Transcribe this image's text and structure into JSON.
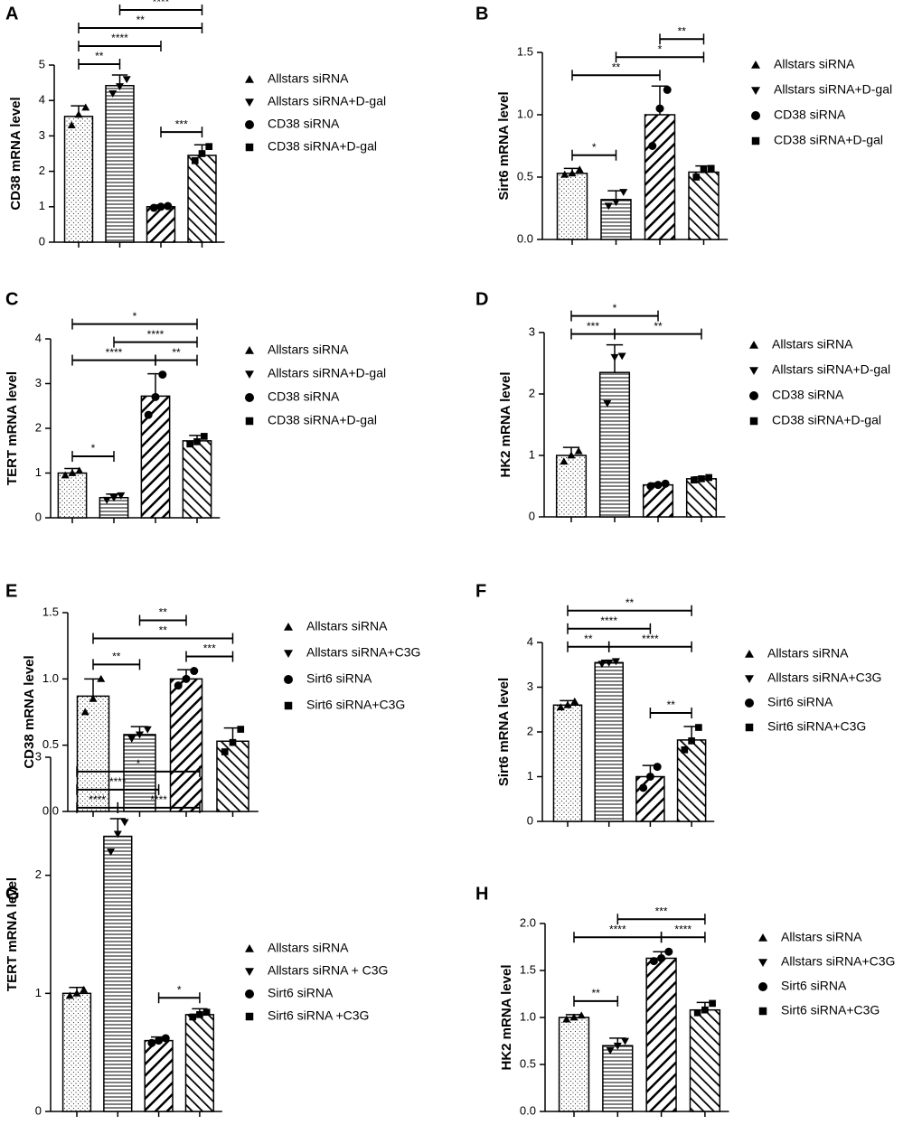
{
  "chart_data": [
    {
      "type": "bar",
      "panel": "A",
      "ylabel": "CD38 mRNA level",
      "categories": [
        "Allstars siRNA",
        "Allstars siRNA+D-gal",
        "CD38 siRNA",
        "CD38 siRNA+D-gal"
      ],
      "values": [
        3.55,
        4.42,
        1.0,
        2.45
      ],
      "errors": [
        0.3,
        0.3,
        0.05,
        0.3
      ],
      "points": [
        [
          3.3,
          3.6,
          3.8
        ],
        [
          4.2,
          4.4,
          4.6
        ],
        [
          0.97,
          1.0,
          1.02
        ],
        [
          2.3,
          2.5,
          2.7
        ]
      ],
      "ylim": [
        0,
        5
      ],
      "yticks": [
        0,
        1,
        2,
        3,
        4,
        5
      ],
      "brackets": [
        {
          "from": 0,
          "to": 1,
          "label": "**"
        },
        {
          "from": 2,
          "to": 3,
          "label": "***"
        },
        {
          "from": 0,
          "to": 2,
          "label": "****"
        },
        {
          "from": 0,
          "to": 3,
          "label": "**"
        },
        {
          "from": 1,
          "to": 3,
          "label": "****"
        }
      ]
    },
    {
      "type": "bar",
      "panel": "B",
      "ylabel": "Sirt6 mRNA level",
      "categories": [
        "Allstars siRNA",
        "Allstars siRNA+D-gal",
        "CD38 siRNA",
        "CD38 siRNA+D-gal"
      ],
      "values": [
        0.53,
        0.32,
        1.0,
        0.54
      ],
      "errors": [
        0.04,
        0.07,
        0.23,
        0.05
      ],
      "points": [
        [
          0.52,
          0.53,
          0.56
        ],
        [
          0.27,
          0.3,
          0.38
        ],
        [
          0.75,
          1.05,
          1.2
        ],
        [
          0.5,
          0.56,
          0.57
        ]
      ],
      "ylim": [
        0,
        1.5
      ],
      "yticks": [
        {
          "value": 0,
          "label": "0.0"
        },
        {
          "value": 0.5,
          "label": "0.5"
        },
        {
          "value": 1,
          "label": "1.0"
        },
        {
          "value": 1.5,
          "label": "1.5"
        }
      ],
      "brackets": [
        {
          "from": 0,
          "to": 1,
          "label": "*"
        },
        {
          "from": 0,
          "to": 2,
          "label": "**"
        },
        {
          "from": 1,
          "to": 3,
          "label": "*"
        },
        {
          "from": 2,
          "to": 3,
          "label": "**"
        }
      ]
    },
    {
      "type": "bar",
      "panel": "C",
      "ylabel": "TERT mRNA level",
      "categories": [
        "Allstars siRNA",
        "Allstars siRNA+D-gal",
        "CD38 siRNA",
        "CD38 siRNA+D-gal"
      ],
      "values": [
        1.0,
        0.45,
        2.72,
        1.72
      ],
      "errors": [
        0.1,
        0.08,
        0.5,
        0.12
      ],
      "points": [
        [
          0.95,
          1.0,
          1.05
        ],
        [
          0.4,
          0.45,
          0.5
        ],
        [
          2.3,
          2.7,
          3.2
        ],
        [
          1.65,
          1.7,
          1.82
        ]
      ],
      "ylim": [
        0,
        4
      ],
      "yticks": [
        0,
        1,
        2,
        3,
        4
      ],
      "brackets": [
        {
          "from": 0,
          "to": 1,
          "label": "*"
        },
        {
          "from": 2,
          "to": 3,
          "label": "**"
        },
        {
          "from": 0,
          "to": 2,
          "label": "****"
        },
        {
          "from": 1,
          "to": 3,
          "label": "****"
        },
        {
          "from": 0,
          "to": 3,
          "label": "*"
        }
      ]
    },
    {
      "type": "bar",
      "panel": "D",
      "ylabel": "HK2 mRNA level",
      "categories": [
        "Allstars siRNA",
        "Allstars siRNA+D-gal",
        "CD38 siRNA",
        "CD38 siRNA+D-gal"
      ],
      "values": [
        1.0,
        2.35,
        0.52,
        0.62
      ],
      "errors": [
        0.13,
        0.45,
        0.03,
        0.03
      ],
      "points": [
        [
          0.9,
          1.0,
          1.07
        ],
        [
          1.85,
          2.6,
          2.62
        ],
        [
          0.5,
          0.52,
          0.54
        ],
        [
          0.6,
          0.62,
          0.64
        ]
      ],
      "ylim": [
        0,
        3
      ],
      "yticks": [
        0,
        1,
        2,
        3
      ],
      "brackets": [
        {
          "from": 0,
          "to": 1,
          "label": "***"
        },
        {
          "from": 1,
          "to": 3,
          "label": "**"
        },
        {
          "from": 0,
          "to": 2,
          "label": "*"
        }
      ]
    },
    {
      "type": "bar",
      "panel": "E",
      "ylabel": "CD38 mRNA level",
      "categories": [
        "Allstars siRNA",
        "Allstars siRNA+C3G",
        "Sirt6 siRNA",
        "Sirt6 siRNA+C3G"
      ],
      "values": [
        0.87,
        0.58,
        1.0,
        0.53
      ],
      "errors": [
        0.13,
        0.06,
        0.07,
        0.1
      ],
      "points": [
        [
          0.75,
          0.85,
          1.0
        ],
        [
          0.55,
          0.58,
          0.62
        ],
        [
          0.95,
          1.0,
          1.06
        ],
        [
          0.45,
          0.52,
          0.62
        ]
      ],
      "ylim": [
        0,
        1.5
      ],
      "yticks": [
        {
          "value": 0,
          "label": "0.0"
        },
        {
          "value": 0.5,
          "label": "0.5"
        },
        {
          "value": 1,
          "label": "1.0"
        },
        {
          "value": 1.5,
          "label": "1.5"
        }
      ],
      "brackets": [
        {
          "from": 0,
          "to": 1,
          "label": "**"
        },
        {
          "from": 2,
          "to": 3,
          "label": "***"
        },
        {
          "from": 0,
          "to": 3,
          "label": "**"
        },
        {
          "from": 1,
          "to": 2,
          "label": "**"
        }
      ]
    },
    {
      "type": "bar",
      "panel": "F",
      "ylabel": "Sirt6 mRNA level",
      "categories": [
        "Allstars siRNA",
        "Allstars siRNA+C3G",
        "Sirt6 siRNA",
        "Sirt6 siRNA+C3G"
      ],
      "values": [
        2.6,
        3.55,
        1.0,
        1.82
      ],
      "errors": [
        0.1,
        0.05,
        0.25,
        0.3
      ],
      "points": [
        [
          2.55,
          2.6,
          2.68
        ],
        [
          3.52,
          3.55,
          3.58
        ],
        [
          0.75,
          1.0,
          1.22
        ],
        [
          1.6,
          1.8,
          2.1
        ]
      ],
      "ylim": [
        0,
        4
      ],
      "yticks": [
        0,
        1,
        2,
        3,
        4
      ],
      "brackets": [
        {
          "from": 2,
          "to": 3,
          "label": "**"
        },
        {
          "from": 0,
          "to": 1,
          "label": "**"
        },
        {
          "from": 1,
          "to": 3,
          "label": "****"
        },
        {
          "from": 0,
          "to": 2,
          "label": "****"
        },
        {
          "from": 0,
          "to": 3,
          "label": "**"
        }
      ]
    },
    {
      "type": "bar",
      "panel": "G",
      "ylabel": "TERT mRNA level",
      "categories": [
        "Allstars siRNA",
        "Allstars siRNA + C3G",
        "Sirt6 siRNA",
        "Sirt6 siRNA +C3G"
      ],
      "values": [
        1.0,
        2.33,
        0.6,
        0.82
      ],
      "errors": [
        0.05,
        0.15,
        0.03,
        0.05
      ],
      "points": [
        [
          0.98,
          1.0,
          1.03
        ],
        [
          2.2,
          2.35,
          2.45
        ],
        [
          0.58,
          0.6,
          0.62
        ],
        [
          0.8,
          0.82,
          0.84
        ]
      ],
      "ylim": [
        0,
        3
      ],
      "yticks": [
        0,
        1,
        2,
        3
      ],
      "brackets": [
        {
          "from": 2,
          "to": 3,
          "label": "*"
        },
        {
          "from": 0,
          "to": 1,
          "label": "****"
        },
        {
          "from": 1,
          "to": 3,
          "label": "****"
        },
        {
          "from": 0,
          "to": 2,
          "label": "****"
        },
        {
          "from": 0,
          "to": 3,
          "label": "*"
        }
      ]
    },
    {
      "type": "bar",
      "panel": "H",
      "ylabel": "HK2 mRNA level",
      "categories": [
        "Allstars siRNA",
        "Allstars siRNA+C3G",
        "Sirt6 siRNA",
        "Sirt6 siRNA+C3G"
      ],
      "values": [
        1.0,
        0.7,
        1.63,
        1.08
      ],
      "errors": [
        0.03,
        0.08,
        0.07,
        0.08
      ],
      "points": [
        [
          0.98,
          1.0,
          1.02
        ],
        [
          0.65,
          0.7,
          0.75
        ],
        [
          1.6,
          1.63,
          1.7
        ],
        [
          1.05,
          1.08,
          1.15
        ]
      ],
      "ylim": [
        0,
        2
      ],
      "yticks": [
        {
          "value": 0,
          "label": "0.0"
        },
        {
          "value": 0.5,
          "label": "0.5"
        },
        {
          "value": 1,
          "label": "1.0"
        },
        {
          "value": 1.5,
          "label": "1.5"
        },
        {
          "value": 2,
          "label": "2.0"
        }
      ],
      "brackets": [
        {
          "from": 0,
          "to": 1,
          "label": "**"
        },
        {
          "from": 2,
          "to": 3,
          "label": "****"
        },
        {
          "from": 0,
          "to": 2,
          "label": "****"
        },
        {
          "from": 1,
          "to": 3,
          "label": "***"
        }
      ]
    }
  ]
}
